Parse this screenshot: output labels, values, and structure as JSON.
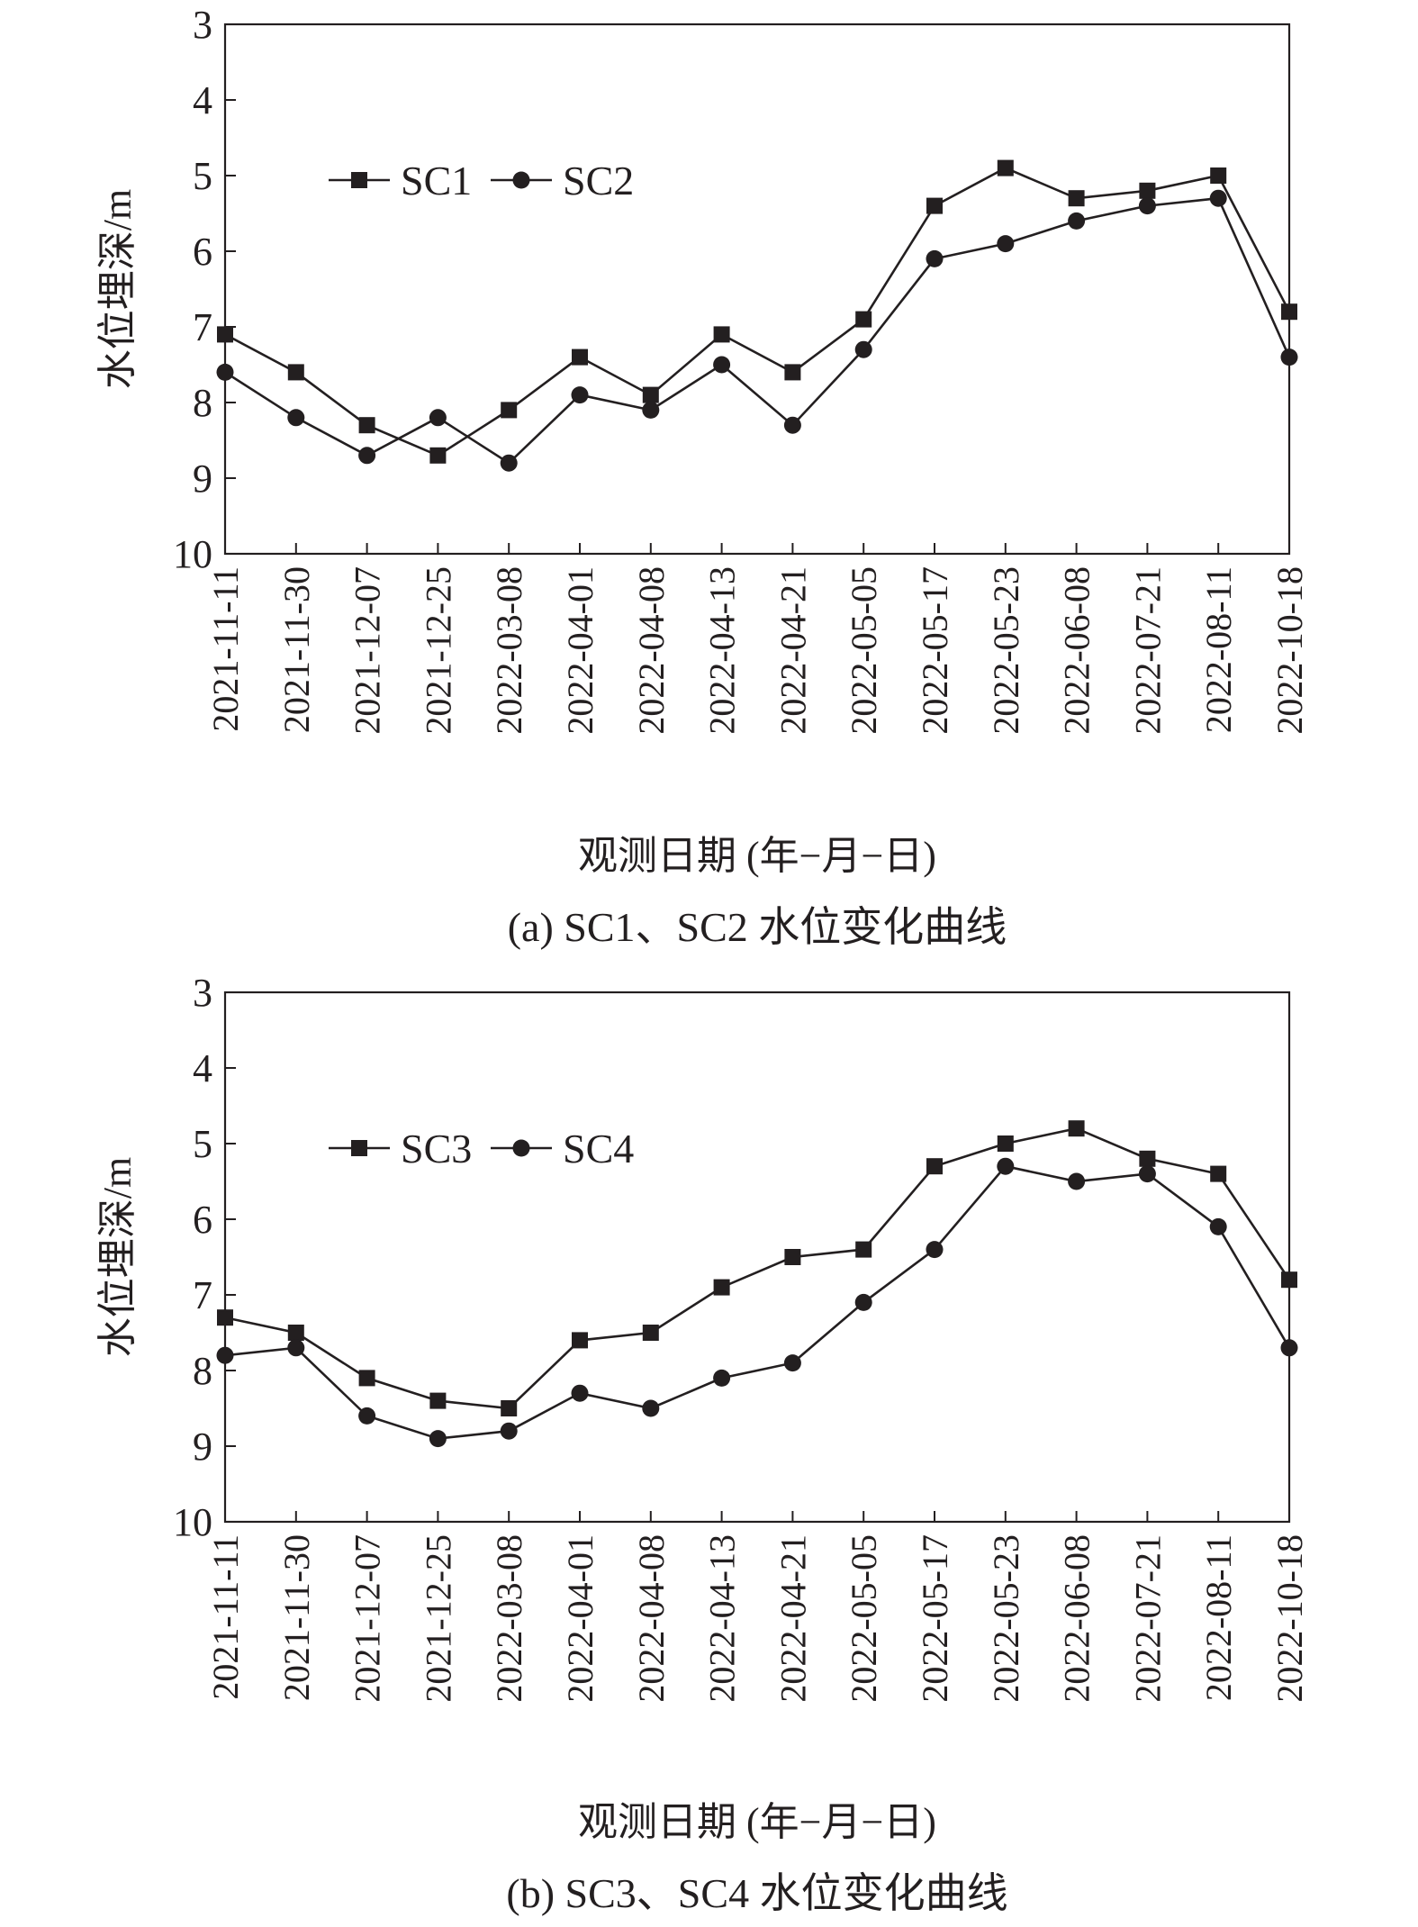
{
  "chart_data": [
    {
      "type": "line",
      "ylabel": "水位埋深/m",
      "xlabel": "观测日期 (年−月−日)",
      "caption": "(a) SC1、SC2 水位变化曲线",
      "ylim": [
        3,
        10
      ],
      "y_inverted": true,
      "yticks": [
        3,
        4,
        5,
        6,
        7,
        8,
        9,
        10
      ],
      "grid": false,
      "legend_position": "top-left",
      "categories": [
        "2021-11-11",
        "2021-11-30",
        "2021-12-07",
        "2021-12-25",
        "2022-03-08",
        "2022-04-01",
        "2022-04-08",
        "2022-04-13",
        "2022-04-21",
        "2022-05-05",
        "2022-05-17",
        "2022-05-23",
        "2022-06-08",
        "2022-07-21",
        "2022-08-11",
        "2022-10-18"
      ],
      "series": [
        {
          "name": "SC1",
          "marker": "square",
          "values": [
            7.1,
            7.6,
            8.3,
            8.7,
            8.1,
            7.4,
            7.9,
            7.1,
            7.6,
            6.9,
            5.4,
            4.9,
            5.3,
            5.2,
            5.0,
            6.8
          ]
        },
        {
          "name": "SC2",
          "marker": "circle",
          "values": [
            7.6,
            8.2,
            8.7,
            8.2,
            8.8,
            7.9,
            8.1,
            7.5,
            8.3,
            7.3,
            6.1,
            5.9,
            5.6,
            5.4,
            5.3,
            7.4
          ]
        }
      ]
    },
    {
      "type": "line",
      "ylabel": "水位埋深/m",
      "xlabel": "观测日期 (年−月−日)",
      "caption": "(b) SC3、SC4 水位变化曲线",
      "ylim": [
        3,
        10
      ],
      "y_inverted": true,
      "yticks": [
        3,
        4,
        5,
        6,
        7,
        8,
        9,
        10
      ],
      "grid": false,
      "legend_position": "top-left",
      "categories": [
        "2021-11-11",
        "2021-11-30",
        "2021-12-07",
        "2021-12-25",
        "2022-03-08",
        "2022-04-01",
        "2022-04-08",
        "2022-04-13",
        "2022-04-21",
        "2022-05-05",
        "2022-05-17",
        "2022-05-23",
        "2022-06-08",
        "2022-07-21",
        "2022-08-11",
        "2022-10-18"
      ],
      "series": [
        {
          "name": "SC3",
          "marker": "square",
          "values": [
            7.3,
            7.5,
            8.1,
            8.4,
            8.5,
            7.6,
            7.5,
            6.9,
            6.5,
            6.4,
            5.3,
            5.0,
            4.8,
            5.2,
            5.4,
            6.8
          ]
        },
        {
          "name": "SC4",
          "marker": "circle",
          "values": [
            7.8,
            7.7,
            8.6,
            8.9,
            8.8,
            8.3,
            8.5,
            8.1,
            7.9,
            7.1,
            6.4,
            5.3,
            5.5,
            5.4,
            6.1,
            7.7
          ]
        }
      ]
    }
  ]
}
